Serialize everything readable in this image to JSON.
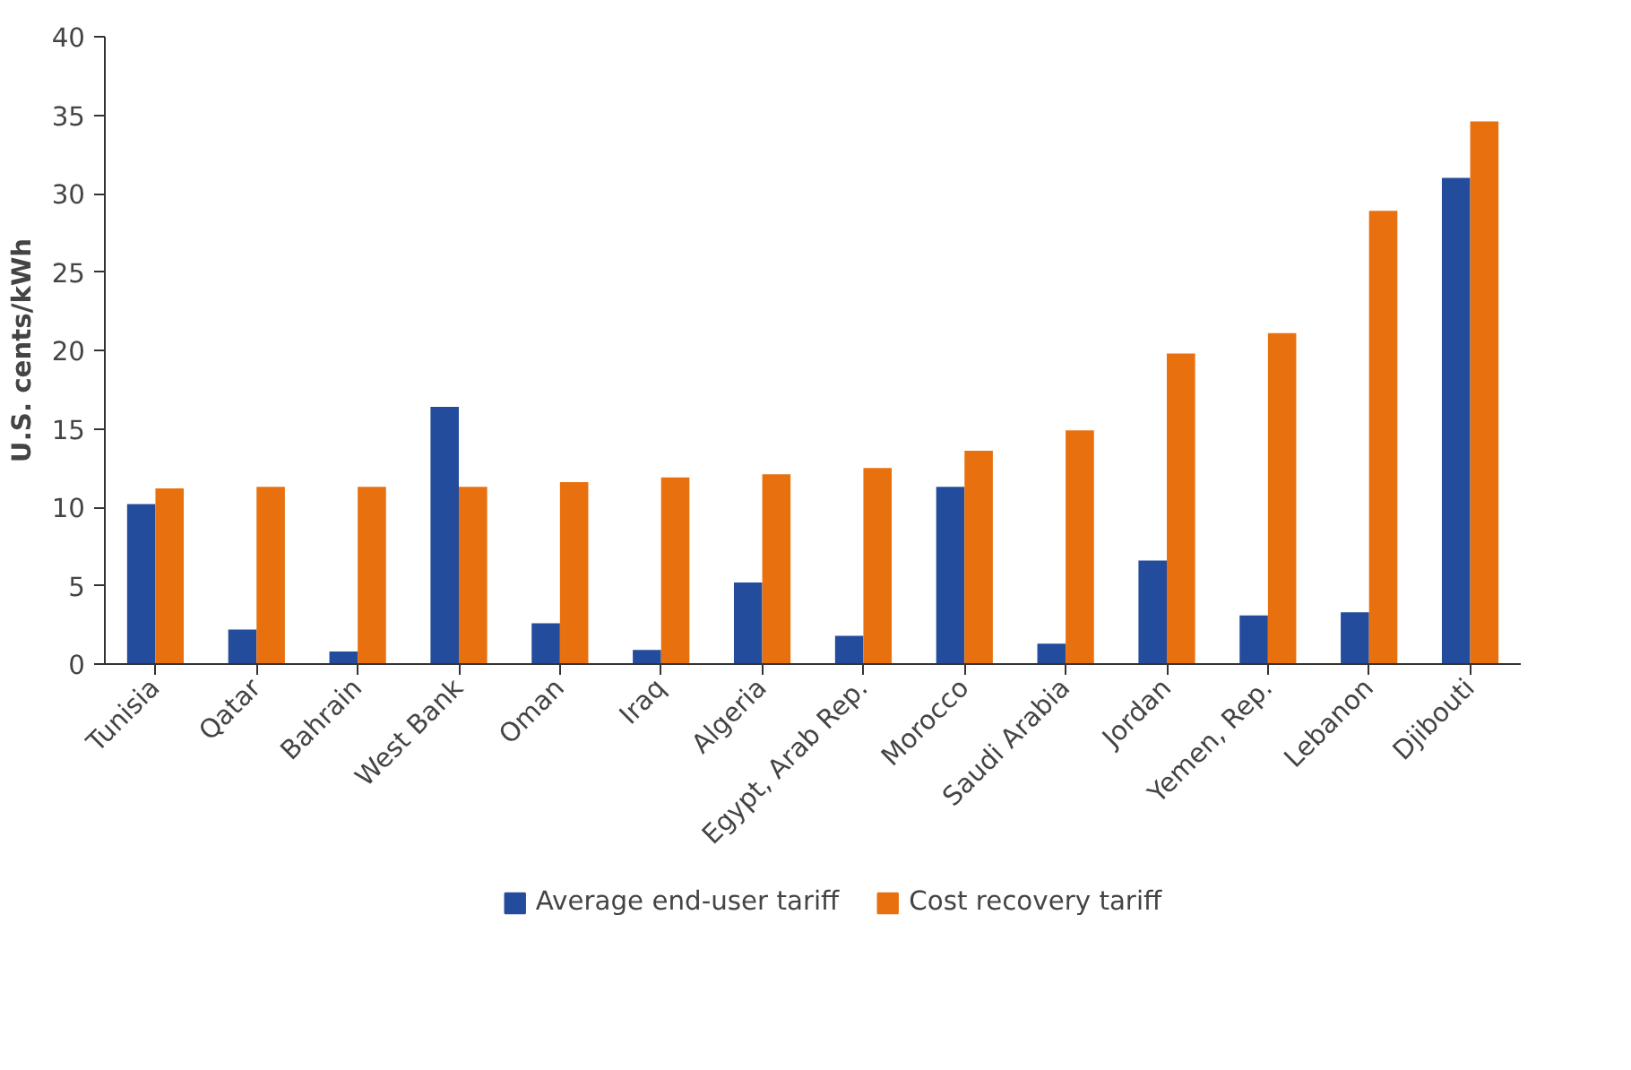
{
  "chart_data": {
    "type": "bar",
    "ylabel": "U.S. cents/kWh",
    "categories": [
      "Tunisia",
      "Qatar",
      "Bahrain",
      "West Bank",
      "Oman",
      "Iraq",
      "Algeria",
      "Egypt, Arab Rep.",
      "Morocco",
      "Saudi Arabia",
      "Jordan",
      "Yemen, Rep.",
      "Lebanon",
      "Djibouti"
    ],
    "series": [
      {
        "name": "Average end-user tariff",
        "color": "#244c9c",
        "values": [
          10.2,
          2.2,
          0.8,
          16.4,
          2.6,
          0.9,
          5.2,
          1.8,
          11.3,
          1.3,
          6.6,
          3.1,
          3.3,
          31.0
        ]
      },
      {
        "name": "Cost recovery tariff",
        "color": "#e8700e",
        "values": [
          11.2,
          11.3,
          11.3,
          11.3,
          11.6,
          11.9,
          12.1,
          12.5,
          13.6,
          14.9,
          19.8,
          21.1,
          28.9,
          34.6
        ]
      }
    ],
    "ylim": [
      0,
      40
    ],
    "yticks": [
      0,
      5,
      10,
      15,
      20,
      25,
      30,
      35,
      40
    ],
    "grid": false,
    "legend": "bottom"
  }
}
